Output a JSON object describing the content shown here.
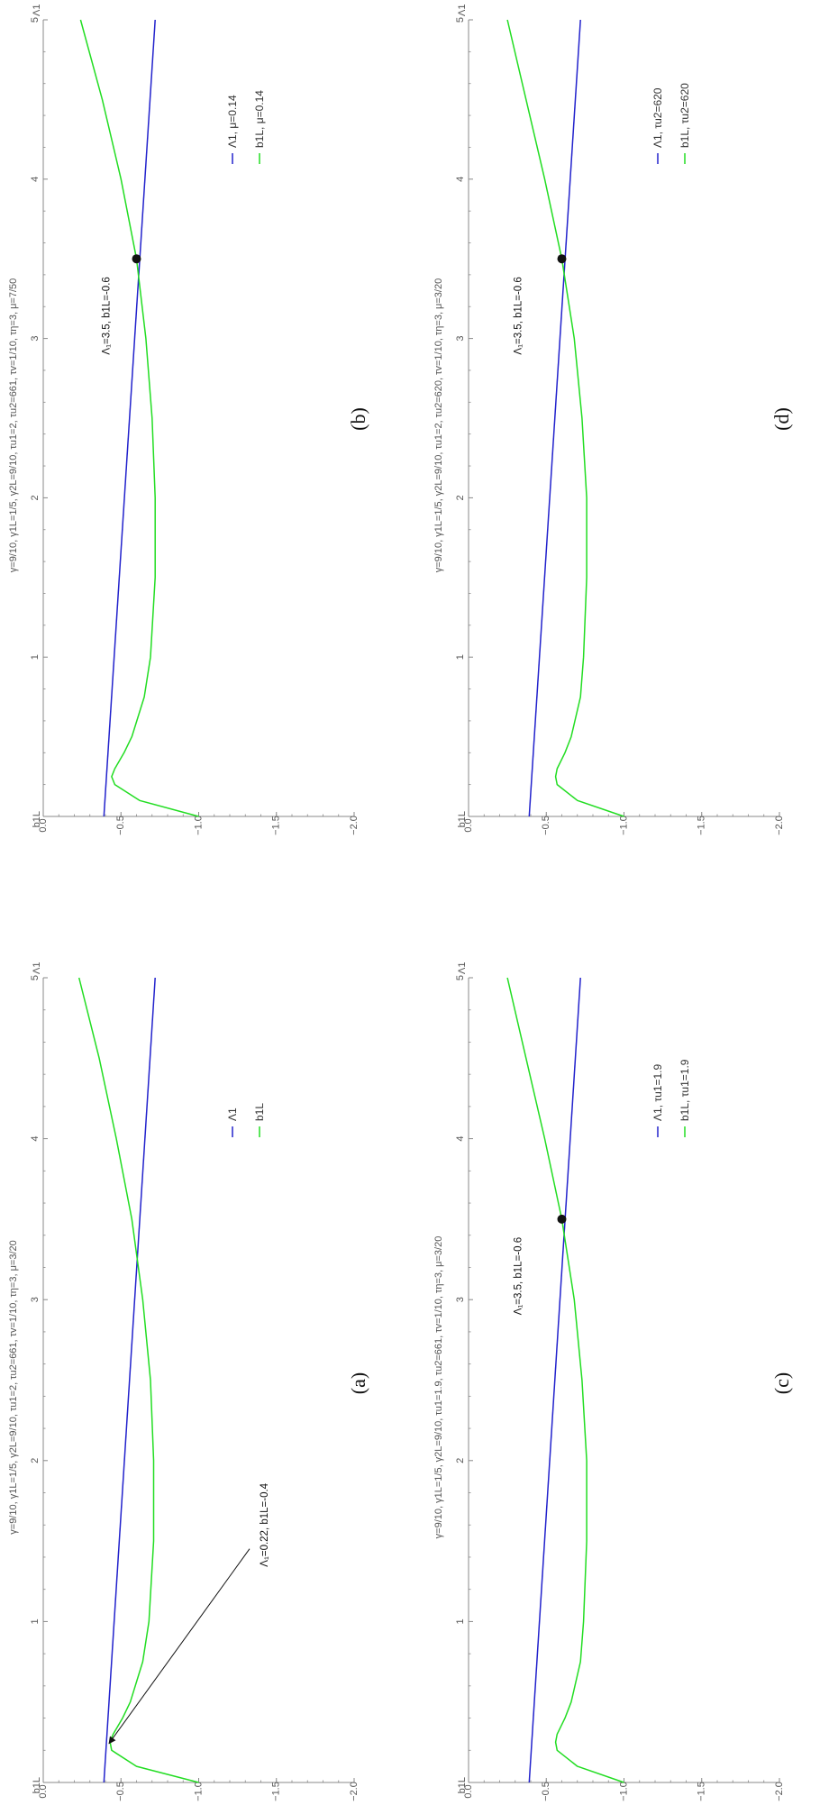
{
  "colors": {
    "lambda_line": "#2222cc",
    "b1l_line": "#22dd22",
    "axis": "#888888",
    "marker": "#111111"
  },
  "chart_data": [
    {
      "type": "line",
      "panel_label": "(a)",
      "params": "γ=9/10, γ1L=1/5, γ2L=9/10, τu1=2, τu2=661, τv=1/10, τη=3, μ=3/20",
      "xlabel": "Λ1",
      "ylabel": "b1L",
      "xlim": [
        0,
        5
      ],
      "ylim": [
        -2.0,
        0.0
      ],
      "x_ticks": [
        "1",
        "2",
        "3",
        "4",
        "5"
      ],
      "y_ticks": [
        "0.0",
        "-0.5",
        "-1.0",
        "-1.5",
        "-2.0"
      ],
      "series": [
        {
          "name": "Λ1",
          "x": [
            0.0,
            5.0
          ],
          "y": [
            -0.39,
            -0.72
          ]
        },
        {
          "name": "b1L",
          "x": [
            0.0,
            0.1,
            0.2,
            0.25,
            0.3,
            0.4,
            0.5,
            0.75,
            1.0,
            1.5,
            2.0,
            2.5,
            3.0,
            3.5,
            4.0,
            4.5,
            5.0
          ],
          "y": [
            -1.0,
            -0.6,
            -0.44,
            -0.43,
            -0.45,
            -0.51,
            -0.56,
            -0.64,
            -0.68,
            -0.71,
            -0.71,
            -0.69,
            -0.64,
            -0.57,
            -0.47,
            -0.36,
            -0.23
          ]
        }
      ],
      "annotation": {
        "text": "Λ₁=0.22, b1L=-0.4",
        "x": 0.22,
        "y": -0.4,
        "style": "arrow"
      }
    },
    {
      "type": "line",
      "panel_label": "(b)",
      "params": "γ=9/10, γ1L=1/5, γ2L=9/10, τu1=2, τu2=661, τv=1/10, τη=3, μ=7/50",
      "xlabel": "Λ1",
      "ylabel": "b1L",
      "xlim": [
        0,
        5
      ],
      "ylim": [
        -2.0,
        0.0
      ],
      "x_ticks": [
        "1",
        "2",
        "3",
        "4",
        "5"
      ],
      "y_ticks": [
        "0.0",
        "-0.5",
        "-1.0",
        "-1.5",
        "-2.0"
      ],
      "series": [
        {
          "name": "Λ1, μ=0.14",
          "x": [
            0.0,
            5.0
          ],
          "y": [
            -0.39,
            -0.72
          ]
        },
        {
          "name": "b1L, μ=0.14",
          "x": [
            0.0,
            0.1,
            0.2,
            0.25,
            0.3,
            0.4,
            0.5,
            0.75,
            1.0,
            1.5,
            2.0,
            2.5,
            3.0,
            3.5,
            4.0,
            4.5,
            5.0
          ],
          "y": [
            -1.0,
            -0.62,
            -0.46,
            -0.44,
            -0.46,
            -0.52,
            -0.57,
            -0.65,
            -0.69,
            -0.72,
            -0.72,
            -0.7,
            -0.66,
            -0.6,
            -0.5,
            -0.38,
            -0.24
          ]
        }
      ],
      "annotation": {
        "text": "Λ₁=3.5, b1L=-0.6",
        "x": 3.5,
        "y": -0.6,
        "style": "point"
      }
    },
    {
      "type": "line",
      "panel_label": "(c)",
      "params": "γ=9/10, γ1L=1/5, γ2L=9/10, τu1=1.9, τu2=661, τv=1/10, τη=3, μ=3/20",
      "xlabel": "Λ1",
      "ylabel": "b1L",
      "xlim": [
        0,
        5
      ],
      "ylim": [
        -2.0,
        0.0
      ],
      "x_ticks": [
        "1",
        "2",
        "3",
        "4",
        "5"
      ],
      "y_ticks": [
        "0.0",
        "-0.5",
        "-1.0",
        "-1.5",
        "-2.0"
      ],
      "series": [
        {
          "name": "Λ1, τu1=1.9",
          "x": [
            0.0,
            5.0
          ],
          "y": [
            -0.39,
            -0.72
          ]
        },
        {
          "name": "b1L, τu1=1.9",
          "x": [
            0.0,
            0.1,
            0.2,
            0.25,
            0.3,
            0.4,
            0.5,
            0.75,
            1.0,
            1.5,
            2.0,
            2.5,
            3.0,
            3.5,
            4.0,
            4.5,
            5.0
          ],
          "y": [
            -1.0,
            -0.7,
            -0.57,
            -0.56,
            -0.57,
            -0.62,
            -0.66,
            -0.72,
            -0.74,
            -0.76,
            -0.76,
            -0.73,
            -0.68,
            -0.6,
            -0.49,
            -0.37,
            -0.25
          ]
        }
      ],
      "annotation": {
        "text": "Λ₁=3.5, b1L=-0.6",
        "x": 3.5,
        "y": -0.6,
        "style": "point"
      }
    },
    {
      "type": "line",
      "panel_label": "(d)",
      "params": "γ=9/10, γ1L=1/5, γ2L=9/10, τu1=2, τu2=620, τv=1/10, τη=3, μ=3/20",
      "xlabel": "Λ1",
      "ylabel": "b1L",
      "xlim": [
        0,
        5
      ],
      "ylim": [
        -2.0,
        0.0
      ],
      "x_ticks": [
        "1",
        "2",
        "3",
        "4",
        "5"
      ],
      "y_ticks": [
        "0.0",
        "-0.5",
        "-1.0",
        "-1.5",
        "-2.0"
      ],
      "series": [
        {
          "name": "Λ1, τu2=620",
          "x": [
            0.0,
            5.0
          ],
          "y": [
            -0.39,
            -0.72
          ]
        },
        {
          "name": "b1L, τu2=620",
          "x": [
            0.0,
            0.1,
            0.2,
            0.25,
            0.3,
            0.4,
            0.5,
            0.75,
            1.0,
            1.5,
            2.0,
            2.5,
            3.0,
            3.5,
            4.0,
            4.5,
            5.0
          ],
          "y": [
            -1.0,
            -0.7,
            -0.57,
            -0.56,
            -0.57,
            -0.62,
            -0.66,
            -0.72,
            -0.74,
            -0.76,
            -0.76,
            -0.73,
            -0.68,
            -0.6,
            -0.49,
            -0.37,
            -0.25
          ]
        }
      ],
      "annotation": {
        "text": "Λ₁=3.5, b1L=-0.6",
        "x": 3.5,
        "y": -0.6,
        "style": "point"
      }
    }
  ]
}
